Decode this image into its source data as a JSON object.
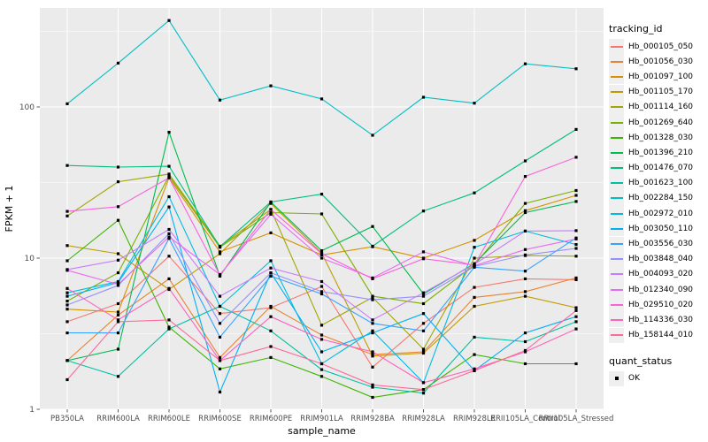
{
  "figure": {
    "background": "#FFFFFF",
    "panel_background": "#EBEBEB",
    "gridline_color": "#FFFFFF",
    "tick_color": "#333333",
    "tick_label_color": "#4D4D4D",
    "axis_title_color": "#000000"
  },
  "legend": {
    "tracking_title": "tracking_id",
    "quant_title": "quant_status",
    "quant_items": [
      "OK"
    ],
    "key_fill": "#EFEFEF",
    "point_shape": "black-square"
  },
  "chart_data": {
    "type": "line",
    "title": "",
    "xlabel": "sample_name",
    "ylabel": "FPKM + 1",
    "y_scale": "log10",
    "ylim": [
      1,
      452
    ],
    "y_major_breaks": [
      1,
      10,
      100
    ],
    "y_minor_breaks": [
      3.162,
      31.62,
      316.2
    ],
    "y_tick_labels": [
      "1",
      "10",
      "100"
    ],
    "grid": true,
    "legend_position": "right",
    "point_marker": "black-square",
    "categories": [
      "PB350LA",
      "RRIM600LA",
      "RRIM600LE",
      "RRIM600SE",
      "RRIM600PE",
      "RRIM901LA",
      "RRIM928BA",
      "RRIM928LA",
      "RRIM928LE",
      "RRII105LA_Control",
      "RRII105LA_Stressed"
    ],
    "series": [
      {
        "name": "Hb_000105_050",
        "color": "#F8766D",
        "values": [
          3.8,
          5.0,
          10.3,
          4.3,
          4.7,
          6.5,
          1.9,
          3.7,
          6.4,
          7.3,
          7.2
        ]
      },
      {
        "name": "Hb_001056_030",
        "color": "#EA8331",
        "values": [
          2.1,
          4.2,
          7.3,
          2.2,
          4.8,
          3.1,
          2.3,
          2.4,
          5.5,
          6.0,
          7.4
        ]
      },
      {
        "name": "Hb_001097_100",
        "color": "#D89000",
        "values": [
          4.6,
          4.4,
          34,
          11.0,
          14.7,
          10.5,
          11.9,
          10.0,
          13.1,
          20.6,
          26
        ]
      },
      {
        "name": "Hb_001105_170",
        "color": "#C09B00",
        "values": [
          12.1,
          10.7,
          6.2,
          10.7,
          23,
          10.8,
          2.25,
          2.35,
          4.8,
          5.6,
          4.7
        ]
      },
      {
        "name": "Hb_001114_160",
        "color": "#A3A500",
        "values": [
          19,
          32,
          36,
          12.0,
          21,
          3.6,
          5.5,
          2.5,
          10.0,
          10.4,
          10.3
        ]
      },
      {
        "name": "Hb_001269_640",
        "color": "#7CAE00",
        "values": [
          5.2,
          8.0,
          35,
          11.8,
          20,
          19.6,
          5.6,
          5.0,
          9.0,
          23,
          28
        ]
      },
      {
        "name": "Hb_001328_030",
        "color": "#39B600",
        "values": [
          9.6,
          17.8,
          3.5,
          1.85,
          2.2,
          1.65,
          1.2,
          1.35,
          2.3,
          2.0,
          2.0
        ]
      },
      {
        "name": "Hb_001396_210",
        "color": "#00BB4E",
        "values": [
          2.1,
          2.5,
          68,
          7.6,
          23.5,
          11.2,
          16.2,
          5.8,
          9.2,
          20,
          23.7
        ]
      },
      {
        "name": "Hb_001476_070",
        "color": "#00BF7D",
        "values": [
          41,
          40,
          40.5,
          11.9,
          23.5,
          26.5,
          12.0,
          20.5,
          27,
          44,
          71
        ]
      },
      {
        "name": "Hb_001623_100",
        "color": "#00C1A3",
        "values": [
          2.1,
          1.65,
          3.4,
          4.8,
          3.3,
          1.83,
          1.4,
          1.28,
          3.0,
          2.8,
          3.8
        ]
      },
      {
        "name": "Hb_002284_150",
        "color": "#00BFC4",
        "values": [
          105,
          195,
          373,
          111,
          138,
          113,
          65,
          116,
          106,
          193,
          179
        ]
      },
      {
        "name": "Hb_002972_010",
        "color": "#00BAE0",
        "values": [
          5.9,
          7.0,
          25.5,
          4.8,
          9.6,
          2.0,
          3.3,
          1.5,
          11.8,
          15.1,
          12.3
        ]
      },
      {
        "name": "Hb_003050_110",
        "color": "#00B0F6",
        "values": [
          5.6,
          6.9,
          21.8,
          1.3,
          8.0,
          2.4,
          3.2,
          4.3,
          1.8,
          3.2,
          4.1
        ]
      },
      {
        "name": "Hb_003556_030",
        "color": "#35A2FF",
        "values": [
          3.2,
          3.2,
          13.5,
          3.0,
          7.6,
          5.8,
          3.7,
          3.3,
          8.7,
          8.2,
          13.6
        ]
      },
      {
        "name": "Hb_003848_040",
        "color": "#9590FF",
        "values": [
          4.9,
          6.6,
          14.5,
          3.7,
          8.0,
          6.0,
          5.3,
          5.6,
          8.8,
          10.5,
          11.6
        ]
      },
      {
        "name": "Hb_004093_020",
        "color": "#C77CFF",
        "values": [
          8.4,
          9.7,
          15.5,
          5.6,
          8.6,
          7.0,
          3.9,
          5.9,
          9.1,
          15.1,
          15.2
        ]
      },
      {
        "name": "Hb_012340_090",
        "color": "#E76BF3",
        "values": [
          8.3,
          6.7,
          13.8,
          7.8,
          19.5,
          10.0,
          7.4,
          11.0,
          8.9,
          11.4,
          13.4
        ]
      },
      {
        "name": "Hb_029510_020",
        "color": "#FA62DB",
        "values": [
          20.4,
          21.9,
          34,
          7.7,
          21,
          10.7,
          7.3,
          9.9,
          9.0,
          34.7,
          46.5
        ]
      },
      {
        "name": "Hb_114336_030",
        "color": "#FF62BC",
        "values": [
          6.3,
          3.9,
          6.3,
          2.1,
          4.1,
          2.9,
          2.4,
          1.5,
          1.85,
          2.4,
          3.4
        ]
      },
      {
        "name": "Hb_158144_010",
        "color": "#FF6A98",
        "values": [
          1.57,
          3.8,
          3.9,
          2.1,
          2.6,
          2.0,
          1.45,
          1.35,
          1.8,
          2.45,
          4.5
        ]
      }
    ]
  }
}
